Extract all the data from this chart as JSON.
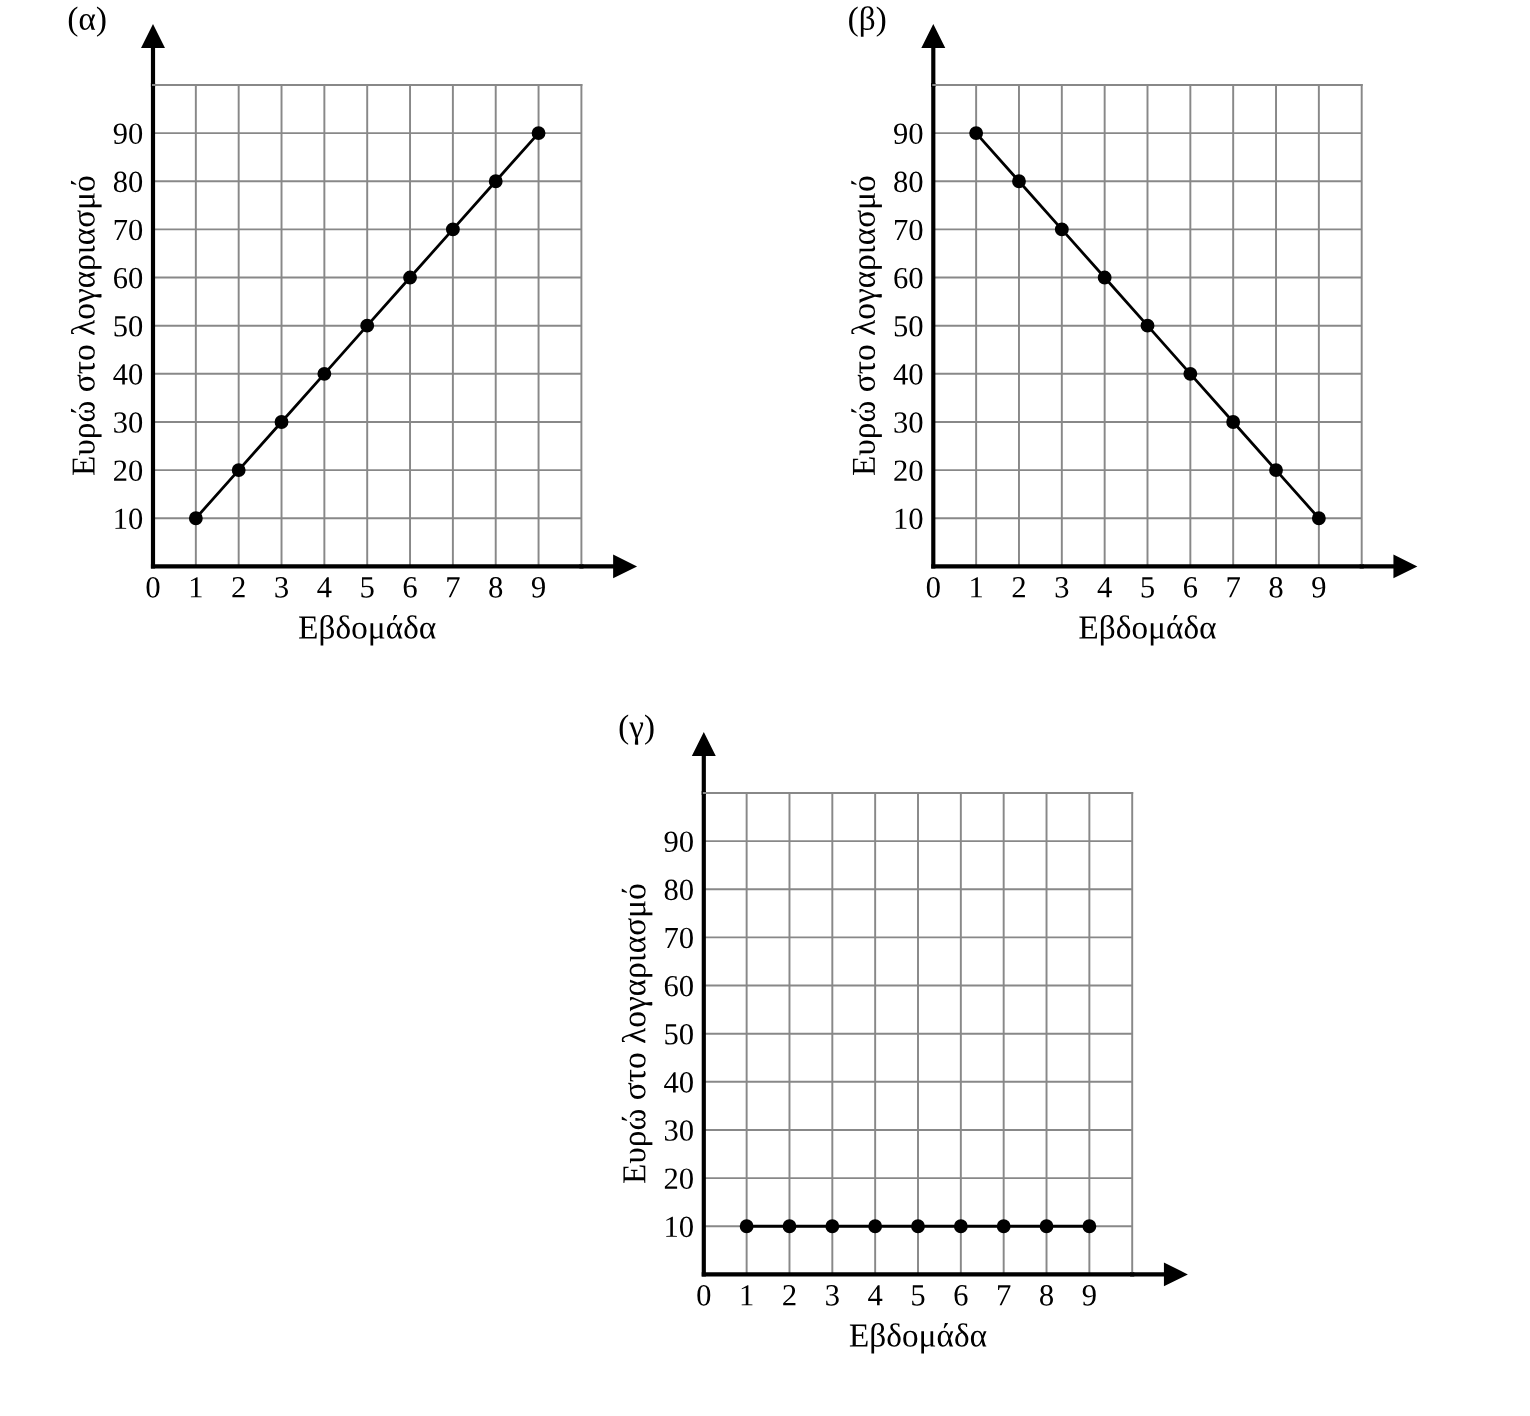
{
  "chart_data": [
    {
      "type": "line",
      "title": "(α)",
      "xlabel": "Εβδομάδα",
      "ylabel": "Ευρώ στο λογαριασμό",
      "x": [
        1,
        2,
        3,
        4,
        5,
        6,
        7,
        8,
        9
      ],
      "marker": "circle",
      "line_style": "solid",
      "grid": true,
      "xlim": [
        0,
        10
      ],
      "ylim": [
        0,
        100
      ],
      "xticks": [
        0,
        1,
        2,
        3,
        4,
        5,
        6,
        7,
        8,
        9
      ],
      "yticks": [
        10,
        20,
        30,
        40,
        50,
        60,
        70,
        80,
        90
      ],
      "series": [
        {
          "color": "#000000",
          "values": [
            10,
            20,
            30,
            40,
            50,
            60,
            70,
            80,
            90
          ]
        }
      ]
    },
    {
      "type": "line",
      "title": "(β)",
      "xlabel": "Εβδομάδα",
      "ylabel": "Ευρώ στο λογαριασμό",
      "x": [
        1,
        2,
        3,
        4,
        5,
        6,
        7,
        8,
        9
      ],
      "marker": "circle",
      "line_style": "solid",
      "grid": true,
      "xlim": [
        0,
        10
      ],
      "ylim": [
        0,
        100
      ],
      "xticks": [
        0,
        1,
        2,
        3,
        4,
        5,
        6,
        7,
        8,
        9
      ],
      "yticks": [
        10,
        20,
        30,
        40,
        50,
        60,
        70,
        80,
        90
      ],
      "series": [
        {
          "color": "#000000",
          "values": [
            90,
            80,
            70,
            60,
            50,
            40,
            30,
            20,
            10
          ]
        }
      ]
    },
    {
      "type": "line",
      "title": "(γ)",
      "xlabel": "Εβδομάδα",
      "ylabel": "Ευρώ στο λογαριασμό",
      "x": [
        1,
        2,
        3,
        4,
        5,
        6,
        7,
        8,
        9
      ],
      "marker": "circle",
      "line_style": "solid",
      "grid": true,
      "xlim": [
        0,
        10
      ],
      "ylim": [
        0,
        100
      ],
      "xticks": [
        0,
        1,
        2,
        3,
        4,
        5,
        6,
        7,
        8,
        9
      ],
      "yticks": [
        10,
        20,
        30,
        40,
        50,
        60,
        70,
        80,
        90
      ],
      "series": [
        {
          "color": "#000000",
          "values": [
            10,
            10,
            10,
            10,
            10,
            10,
            10,
            10,
            10
          ]
        }
      ]
    }
  ]
}
